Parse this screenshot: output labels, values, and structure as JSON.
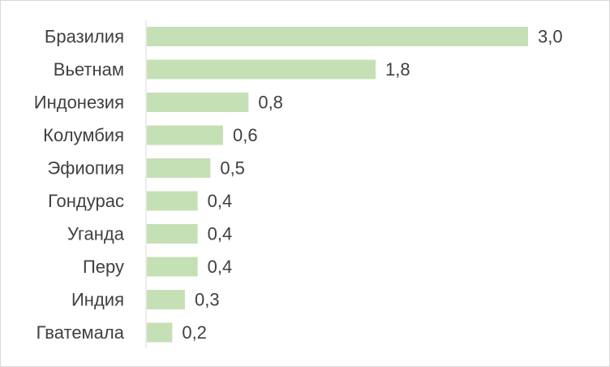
{
  "chart_data": {
    "type": "bar",
    "orientation": "horizontal",
    "title": "",
    "xlabel": "",
    "ylabel": "",
    "categories": [
      "Бразилия",
      "Вьетнам",
      "Индонезия",
      "Колумбия",
      "Эфиопия",
      "Гондурас",
      "Уганда",
      "Перу",
      "Индия",
      "Гватемала"
    ],
    "values": [
      3.0,
      1.8,
      0.8,
      0.6,
      0.5,
      0.4,
      0.4,
      0.4,
      0.3,
      0.2
    ],
    "value_labels": [
      "3,0",
      "1,8",
      "0,8",
      "0,6",
      "0,5",
      "0,4",
      "0,4",
      "0,4",
      "0,3",
      "0,2"
    ],
    "xlim": [
      0,
      3.0
    ],
    "grid": false,
    "legend": "none",
    "bar_color": "#c5e0b4",
    "axis_color": "#d9d9d9",
    "text_color": "#404040"
  }
}
